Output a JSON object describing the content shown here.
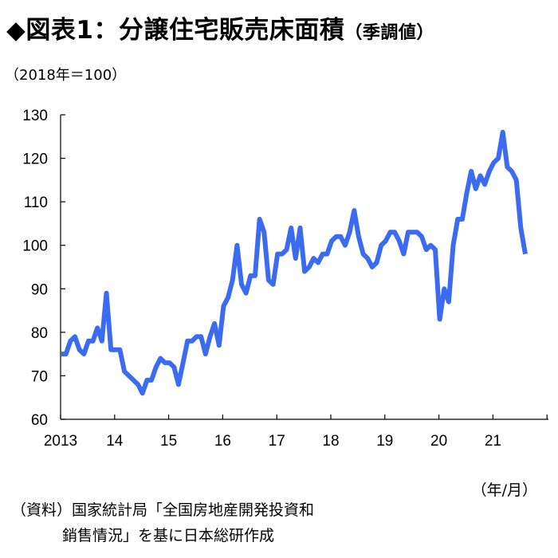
{
  "header": {
    "title": "◆図表1：分譲住宅販売床面積",
    "subtitle": "（季調値）",
    "unit_label": "（2018年＝100）",
    "x_unit_label": "（年/月）"
  },
  "source": {
    "line1": "（資料）国家統計局「全国房地産開発投資和",
    "line2": "銷售情況」を基に日本総研作成"
  },
  "colors": {
    "series": "#3b6cf0",
    "axis": "#000000"
  },
  "chart_data": {
    "type": "line",
    "title": "分譲住宅販売床面積",
    "ylabel": "（2018年＝100）",
    "xlabel": "（年/月）",
    "ylim": [
      60,
      130
    ],
    "yticks": [
      60,
      70,
      80,
      90,
      100,
      110,
      120,
      130
    ],
    "xtick_labels": [
      "2013",
      "14",
      "15",
      "16",
      "17",
      "18",
      "19",
      "20",
      "21"
    ],
    "x_start": "2013-01",
    "grid": false,
    "legend": "none",
    "series": [
      {
        "values": [
          75,
          75,
          78,
          79,
          76,
          75,
          78,
          78,
          81,
          78,
          89,
          76,
          76,
          76,
          71,
          70,
          69,
          68,
          66,
          69,
          69,
          72,
          74,
          73,
          73,
          72,
          68,
          73,
          78,
          78,
          79,
          79,
          75,
          79,
          82,
          77,
          86,
          88,
          92,
          100,
          91,
          89,
          93,
          93,
          106,
          103,
          92,
          91,
          98,
          98,
          99,
          104,
          97,
          104,
          94,
          95,
          97,
          96,
          98,
          98,
          101,
          102,
          102,
          100,
          103,
          108,
          102,
          98,
          97,
          95,
          96,
          100,
          101,
          103,
          103,
          101,
          98,
          103,
          103,
          103,
          102,
          99,
          100,
          99,
          83,
          90,
          87,
          100,
          106,
          106,
          112,
          117,
          113,
          116,
          114,
          117,
          119,
          120,
          126,
          118,
          117,
          115,
          104,
          98
        ]
      }
    ]
  }
}
